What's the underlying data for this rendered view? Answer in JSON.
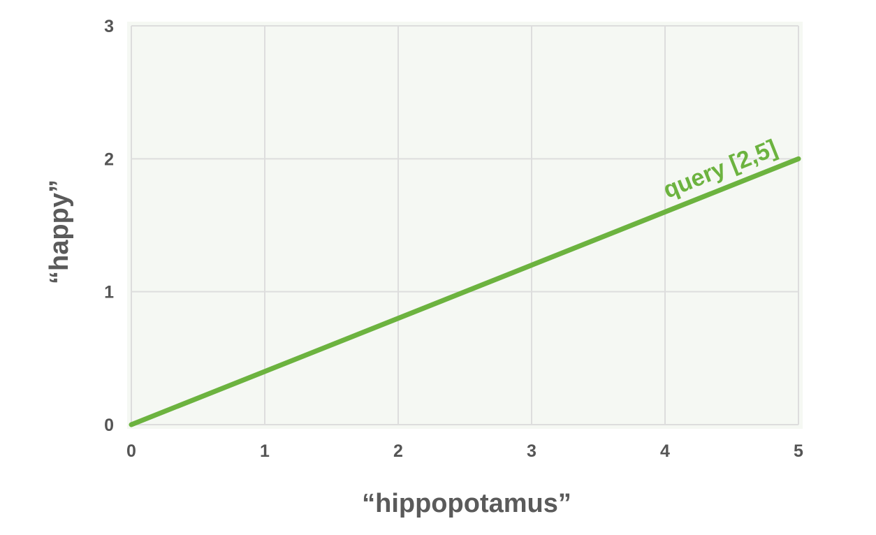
{
  "chart_data": {
    "type": "line",
    "xlabel": "“hippopotamus”",
    "ylabel": "“happy”",
    "xlim": [
      0,
      5
    ],
    "ylim": [
      0,
      3
    ],
    "xticks": [
      "0",
      "1",
      "2",
      "3",
      "4",
      "5"
    ],
    "yticks": [
      "0",
      "1",
      "2",
      "3"
    ],
    "grid": true,
    "legend": "none",
    "series": [
      {
        "name": "query [2,5]",
        "x": [
          0,
          5
        ],
        "y": [
          0,
          2
        ],
        "color": "#6cb33f"
      }
    ],
    "colors": {
      "plot_background": "#f5f8f3",
      "grid": "#dddddd",
      "line": "#6cb33f"
    }
  }
}
